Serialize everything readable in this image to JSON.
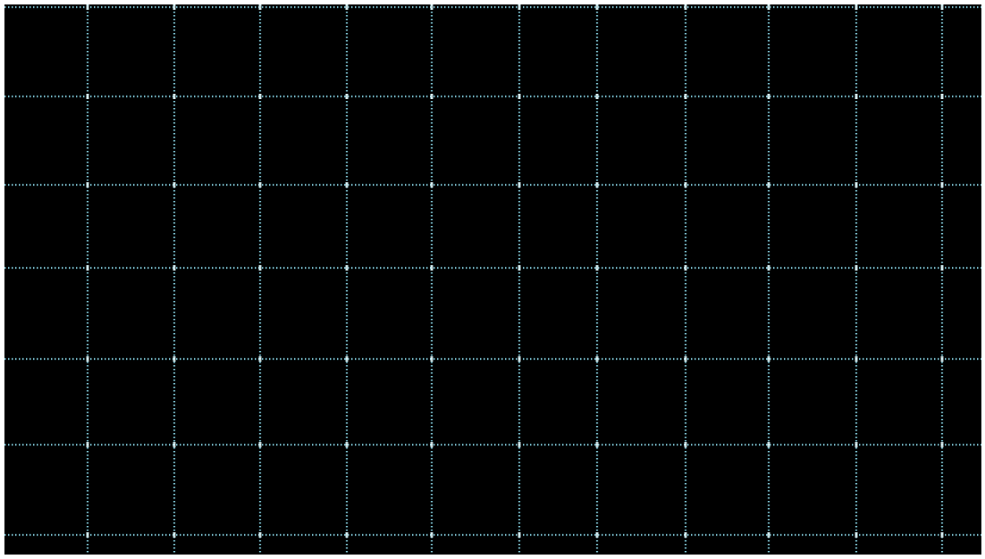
{
  "display": {
    "background_color": "#000000",
    "border_color": "#ffffff",
    "grid_color": "#8fd8e8",
    "grid_glow_color": "#4aa6b8",
    "grid_style": "dotted",
    "grid_columns": 11,
    "grid_rows": 6
  }
}
